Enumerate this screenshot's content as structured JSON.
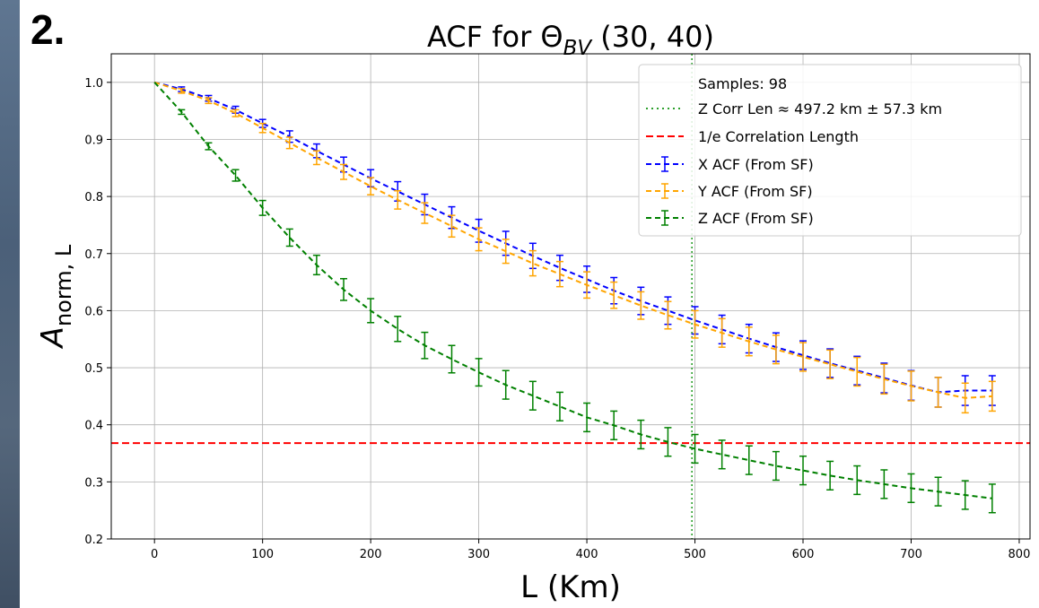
{
  "panel_label": "2.",
  "chart_data": {
    "type": "line",
    "title_main": "ACF for Θ",
    "title_sub": "BV",
    "title_tail": " (30, 40)",
    "xlabel": "L (Km)",
    "ylabel_main": "A",
    "ylabel_sub": "norm, L",
    "xlim": [
      -40,
      810
    ],
    "ylim": [
      0.2,
      1.05
    ],
    "x_ticks": [
      0,
      100,
      200,
      300,
      400,
      500,
      600,
      700,
      800
    ],
    "y_ticks": [
      0.2,
      0.3,
      0.4,
      0.5,
      0.6,
      0.7,
      0.8,
      0.9,
      1.0
    ],
    "y_tick_labels": [
      "0.2",
      "0.3",
      "0.4",
      "0.5",
      "0.6",
      "0.7",
      "0.8",
      "0.9",
      "1.0"
    ],
    "grid": true,
    "legend_position": "top-right",
    "x": [
      0,
      25,
      50,
      75,
      100,
      125,
      150,
      175,
      200,
      225,
      250,
      275,
      300,
      325,
      350,
      375,
      400,
      425,
      450,
      475,
      500,
      525,
      550,
      575,
      600,
      625,
      650,
      675,
      700,
      725,
      750,
      775
    ],
    "series": [
      {
        "name": "X ACF (From SF)",
        "color": "#0000ff",
        "values": [
          1.0,
          0.988,
          0.972,
          0.952,
          0.928,
          0.905,
          0.88,
          0.856,
          0.832,
          0.809,
          0.786,
          0.763,
          0.74,
          0.718,
          0.696,
          0.675,
          0.655,
          0.635,
          0.617,
          0.6,
          0.583,
          0.567,
          0.551,
          0.536,
          0.522,
          0.508,
          0.495,
          0.482,
          0.469,
          0.457,
          0.46,
          0.46
        ],
        "errors": [
          0.0,
          0.004,
          0.005,
          0.006,
          0.007,
          0.01,
          0.012,
          0.013,
          0.015,
          0.017,
          0.018,
          0.019,
          0.02,
          0.021,
          0.022,
          0.022,
          0.023,
          0.023,
          0.024,
          0.024,
          0.024,
          0.025,
          0.025,
          0.025,
          0.025,
          0.025,
          0.025,
          0.026,
          0.026,
          0.026,
          0.026,
          0.026
        ]
      },
      {
        "name": "Y ACF (From SF)",
        "color": "#ffa500",
        "values": [
          1.0,
          0.985,
          0.968,
          0.946,
          0.92,
          0.894,
          0.868,
          0.843,
          0.818,
          0.794,
          0.771,
          0.748,
          0.725,
          0.704,
          0.683,
          0.664,
          0.645,
          0.627,
          0.609,
          0.592,
          0.576,
          0.561,
          0.546,
          0.532,
          0.519,
          0.506,
          0.493,
          0.48,
          0.468,
          0.457,
          0.447,
          0.45
        ],
        "errors": [
          0.0,
          0.004,
          0.005,
          0.006,
          0.008,
          0.01,
          0.012,
          0.013,
          0.015,
          0.016,
          0.018,
          0.019,
          0.02,
          0.021,
          0.022,
          0.022,
          0.023,
          0.023,
          0.024,
          0.024,
          0.024,
          0.025,
          0.025,
          0.025,
          0.025,
          0.025,
          0.025,
          0.026,
          0.026,
          0.026,
          0.026,
          0.026
        ]
      },
      {
        "name": "Z ACF (From SF)",
        "color": "#008000",
        "values": [
          1.0,
          0.948,
          0.888,
          0.837,
          0.78,
          0.728,
          0.68,
          0.637,
          0.6,
          0.568,
          0.539,
          0.515,
          0.492,
          0.47,
          0.451,
          0.432,
          0.413,
          0.399,
          0.383,
          0.37,
          0.358,
          0.348,
          0.338,
          0.328,
          0.32,
          0.311,
          0.303,
          0.296,
          0.289,
          0.283,
          0.277,
          0.271
        ],
        "errors": [
          0.0,
          0.004,
          0.006,
          0.01,
          0.013,
          0.015,
          0.017,
          0.019,
          0.021,
          0.022,
          0.023,
          0.024,
          0.024,
          0.025,
          0.025,
          0.025,
          0.025,
          0.025,
          0.025,
          0.025,
          0.025,
          0.025,
          0.025,
          0.025,
          0.025,
          0.025,
          0.025,
          0.025,
          0.025,
          0.025,
          0.025,
          0.025
        ]
      }
    ],
    "reference_lines": {
      "hline": {
        "y": 0.3679,
        "color": "#ff0000",
        "label": "1/e Correlation Length"
      },
      "vline": {
        "x": 497.2,
        "color": "#2ca02c",
        "label": "Z Corr Len ≈ 497.2 km ± 57.3 km"
      }
    },
    "legend": {
      "samples_text": "Samples: 98",
      "entries": [
        "Samples: 98",
        "Z Corr Len ≈ 497.2 km ± 57.3 km",
        "1/e Correlation Length",
        "X ACF (From SF)",
        "Y ACF (From SF)",
        "Z ACF (From SF)"
      ]
    }
  }
}
